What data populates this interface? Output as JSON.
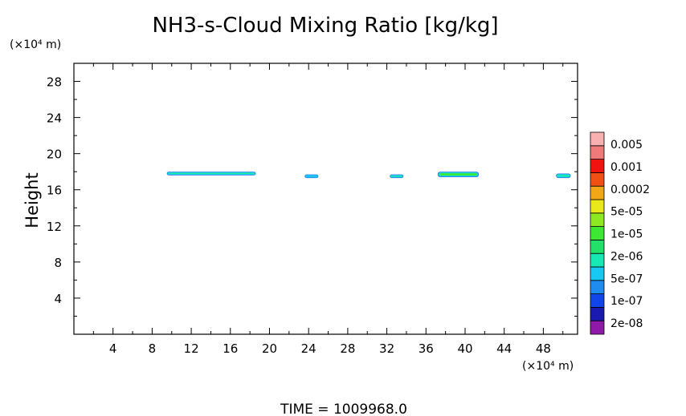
{
  "chart_data": {
    "type": "contour",
    "title": "NH3-s-Cloud Mixing Ratio [kg/kg]",
    "ylabel": "Height",
    "xlabel": "",
    "x_unit": "(×10⁴ m)",
    "y_unit": "(×10⁴ m)",
    "xlim": [
      0,
      51.5
    ],
    "ylim": [
      0,
      30
    ],
    "x_ticks": [
      4,
      8,
      12,
      16,
      20,
      24,
      28,
      32,
      36,
      40,
      44,
      48
    ],
    "y_ticks": [
      4,
      8,
      12,
      16,
      20,
      24,
      28
    ],
    "x_minor_step": 2,
    "y_minor_step": 2,
    "colorbar": {
      "labels": [
        "0.005",
        "0.001",
        "0.0002",
        "5e-05",
        "1e-05",
        "2e-06",
        "5e-07",
        "1e-07",
        "2e-08"
      ],
      "colors": [
        "#8e1aa8",
        "#1a1ab0",
        "#1246e8",
        "#1e8cf0",
        "#18c8f0",
        "#18e8b4",
        "#22e06a",
        "#3ce832",
        "#8ee822",
        "#e8e81c",
        "#f0a818",
        "#f05014",
        "#f01410",
        "#f07a7a",
        "#f8b0b0"
      ]
    },
    "cloud_regions": [
      {
        "x_start": 9.5,
        "x_end": 18.6,
        "y_bottom": 17.6,
        "y_top": 18.0,
        "peak_level": "1e-05"
      },
      {
        "x_start": 23.6,
        "x_end": 25.0,
        "y_bottom": 17.3,
        "y_top": 17.7,
        "peak_level": "5e-07"
      },
      {
        "x_start": 32.3,
        "x_end": 33.7,
        "y_bottom": 17.3,
        "y_top": 17.7,
        "peak_level": "2e-06"
      },
      {
        "x_start": 37.2,
        "x_end": 41.4,
        "y_bottom": 17.4,
        "y_top": 18.0,
        "peak_level": "1e-05"
      },
      {
        "x_start": 49.3,
        "x_end": 50.8,
        "y_bottom": 17.3,
        "y_top": 17.8,
        "peak_level": "2e-06"
      }
    ],
    "footer": "TIME = 1009968.0"
  }
}
